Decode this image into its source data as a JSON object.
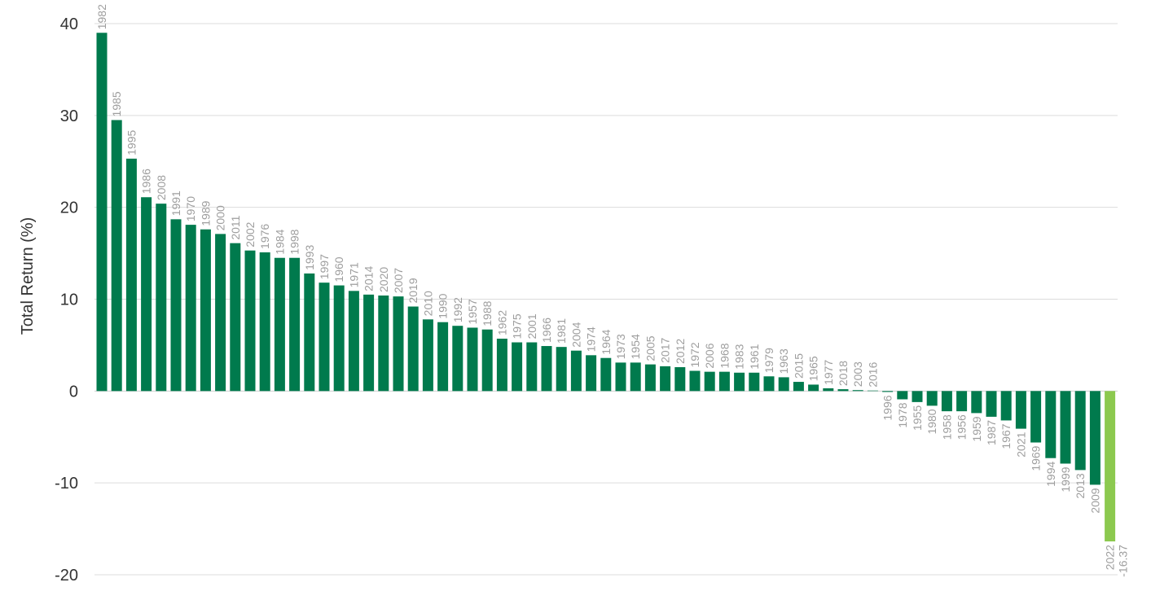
{
  "chart_data": {
    "type": "bar",
    "title": "",
    "xlabel": "",
    "ylabel": "Total Return (%)",
    "ylim": [
      -20,
      40
    ],
    "yticks": [
      "40",
      "30",
      "20",
      "10",
      "0",
      "-10",
      "-20"
    ],
    "ytick_values": [
      40,
      30,
      20,
      10,
      0,
      -10,
      -20
    ],
    "grid": true,
    "legend": "none",
    "colors": {
      "default": "#007a4d",
      "highlight": "#8cc94f"
    },
    "categories": [
      "1982",
      "1985",
      "1995",
      "1986",
      "2008",
      "1991",
      "1970",
      "1989",
      "2000",
      "2011",
      "2002",
      "1976",
      "1984",
      "1998",
      "1993",
      "1997",
      "1960",
      "1971",
      "2014",
      "2020",
      "2007",
      "2019",
      "2010",
      "1990",
      "1992",
      "1957",
      "1988",
      "1962",
      "1975",
      "2001",
      "1966",
      "1981",
      "2004",
      "1974",
      "1964",
      "1973",
      "1954",
      "2005",
      "2017",
      "2012",
      "1972",
      "2006",
      "1968",
      "1983",
      "1961",
      "1979",
      "1963",
      "2015",
      "1965",
      "1977",
      "2018",
      "2003",
      "2016",
      "1996",
      "1978",
      "1955",
      "1980",
      "1958",
      "1956",
      "1959",
      "1987",
      "1967",
      "2021",
      "1969",
      "1994",
      "1999",
      "2013",
      "2009",
      "2022"
    ],
    "values": [
      39.0,
      29.5,
      25.3,
      21.1,
      20.4,
      18.7,
      18.1,
      17.6,
      17.1,
      16.1,
      15.3,
      15.1,
      14.5,
      14.5,
      12.8,
      11.8,
      11.5,
      10.9,
      10.5,
      10.4,
      10.3,
      9.2,
      7.8,
      7.5,
      7.1,
      6.9,
      6.7,
      5.7,
      5.3,
      5.3,
      4.9,
      4.8,
      4.4,
      3.9,
      3.6,
      3.1,
      3.1,
      2.9,
      2.7,
      2.6,
      2.2,
      2.1,
      2.1,
      2.0,
      2.0,
      1.6,
      1.5,
      1.0,
      0.7,
      0.3,
      0.2,
      0.1,
      0.05,
      -0.1,
      -0.9,
      -1.2,
      -1.6,
      -2.2,
      -2.2,
      -2.4,
      -2.8,
      -3.2,
      -4.1,
      -5.6,
      -7.3,
      -7.9,
      -8.6,
      -10.2,
      -16.37
    ],
    "highlight_index": 68,
    "data_labels": {
      "68": "-16.37"
    }
  }
}
